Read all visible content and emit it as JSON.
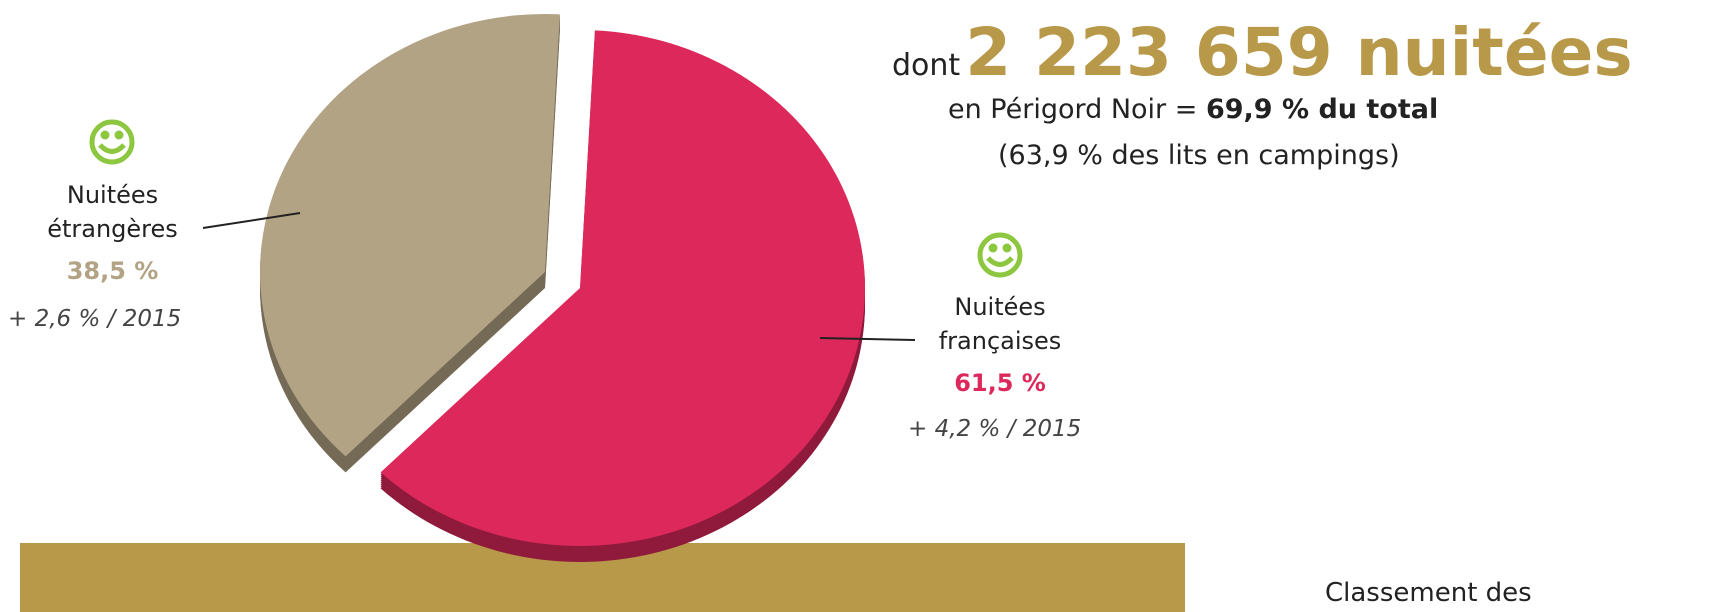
{
  "chart_data": {
    "type": "pie",
    "categories": [
      "Nuitées françaises",
      "Nuitées étrangères"
    ],
    "values": [
      61.5,
      38.5
    ],
    "value_labels": [
      "61,5 %",
      "38,5 %"
    ],
    "colors": [
      "#dc285a",
      "#b3a385"
    ],
    "annotations": [
      "+ 4,2 % / 2015",
      "+ 2,6 % / 2015"
    ]
  },
  "headline": {
    "prefix": "dont",
    "figure": "2 223 659 nuitées",
    "line1": "en Périgord Noir =",
    "line1_bold": "69,9 % du total",
    "line2": "(63,9 % des lits en campings)"
  },
  "footer": "Classement des"
}
